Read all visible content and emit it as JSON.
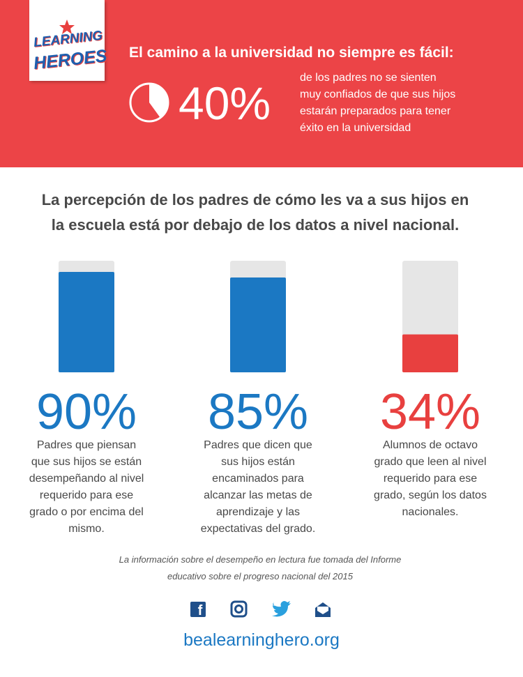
{
  "logo": [
    "LEARNING",
    "HEROES"
  ],
  "header": {
    "title": "El camino a la universidad no siempre es fácil:",
    "percent": 40,
    "percent_label": "40%",
    "description": [
      "de los padres no se sienten",
      "muy confiados de que sus hijos",
      "estarán preparados para tener",
      "éxito en la universidad"
    ]
  },
  "heading": [
    "La percepción de los padres de cómo les va a sus hijos en",
    "la escuela está por debajo de los datos a nivel nacional."
  ],
  "stats": [
    {
      "value": 90,
      "value_label": "90%",
      "color": "#1b78c3",
      "description": [
        "Padres que piensan",
        "que sus hijos se están",
        "desempeñando al nivel",
        "requerido para ese",
        "grado o por encima del",
        "mismo."
      ]
    },
    {
      "value": 85,
      "value_label": "85%",
      "color": "#1b78c3",
      "description": [
        "Padres que dicen que",
        "sus hijos están",
        "encaminados para",
        "alcanzar las metas de",
        "aprendizaje y las",
        "expectativas del grado."
      ]
    },
    {
      "value": 34,
      "value_label": "34%",
      "color": "#e8403f",
      "description": [
        "Alumnos de octavo",
        "grado que leen al nivel",
        "requerido para ese",
        "grado, según los datos",
        "nacionales."
      ]
    }
  ],
  "footnote": [
    "La información sobre el desempeño en lectura fue tomada del Informe",
    "educativo sobre el progreso nacional del 2015"
  ],
  "url": "bealearninghero.org"
}
